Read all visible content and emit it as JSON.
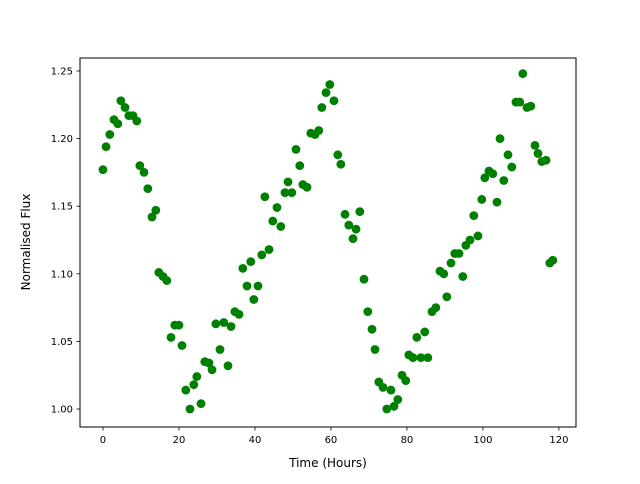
{
  "chart_data": {
    "type": "scatter",
    "title": "",
    "xlabel": "Time (Hours)",
    "ylabel": "Normalised Flux",
    "xlim": [
      -6.05,
      124.5
    ],
    "ylim": [
      0.9867,
      1.2596
    ],
    "xticks": [
      0,
      20,
      40,
      60,
      80,
      100,
      120
    ],
    "xtick_labels": [
      "0",
      "20",
      "40",
      "60",
      "80",
      "100",
      "120"
    ],
    "yticks": [
      1.0,
      1.05,
      1.1,
      1.15,
      1.2,
      1.25
    ],
    "ytick_labels": [
      "1.00",
      "1.05",
      "1.10",
      "1.15",
      "1.20",
      "1.25"
    ],
    "grid": false,
    "marker_color": "#008000",
    "x": [
      0,
      0.8,
      1.8,
      2.9,
      3.9,
      4.7,
      5.8,
      6.8,
      7.9,
      8.9,
      9.7,
      10.8,
      11.8,
      12.9,
      13.9,
      14.7,
      15.8,
      16.8,
      17.9,
      18.9,
      20,
      20.8,
      21.8,
      22.9,
      23.9,
      24.7,
      25.8,
      26.8,
      27.9,
      28.7,
      29.7,
      30.8,
      31.8,
      32.9,
      33.7,
      34.7,
      35.8,
      36.8,
      37.9,
      38.9,
      39.7,
      40.8,
      41.8,
      42.6,
      43.7,
      44.7,
      45.8,
      46.8,
      47.9,
      48.7,
      49.7,
      50.8,
      51.8,
      52.6,
      53.7,
      54.7,
      55.8,
      56.8,
      57.6,
      58.7,
      59.7,
      60.8,
      61.8,
      62.6,
      63.7,
      64.7,
      65.8,
      66.6,
      67.6,
      68.7,
      69.7,
      70.8,
      71.6,
      72.6,
      73.7,
      74.7,
      75.8,
      76.6,
      77.6,
      78.7,
      79.7,
      80.5,
      81.6,
      82.6,
      83.7,
      84.7,
      85.5,
      86.6,
      87.6,
      88.7,
      89.7,
      90.5,
      91.6,
      92.6,
      93.7,
      94.7,
      95.5,
      96.6,
      97.6,
      98.7,
      99.7,
      100.5,
      101.6,
      102.6,
      103.7,
      104.5,
      105.5,
      106.6,
      107.6,
      108.7,
      109.7,
      110.5,
      111.6,
      112.6,
      113.7,
      114.5,
      115.5,
      116.6,
      117.6,
      118.4
    ],
    "y": [
      1.177,
      1.194,
      1.203,
      1.214,
      1.211,
      1.228,
      1.223,
      1.217,
      1.217,
      1.213,
      1.18,
      1.175,
      1.163,
      1.142,
      1.147,
      1.101,
      1.098,
      1.095,
      1.053,
      1.062,
      1.062,
      1.047,
      1.014,
      1.0,
      1.018,
      1.024,
      1.004,
      1.035,
      1.034,
      1.029,
      1.063,
      1.044,
      1.064,
      1.032,
      1.061,
      1.072,
      1.07,
      1.104,
      1.091,
      1.109,
      1.081,
      1.091,
      1.114,
      1.157,
      1.118,
      1.139,
      1.149,
      1.135,
      1.16,
      1.168,
      1.16,
      1.192,
      1.18,
      1.166,
      1.164,
      1.204,
      1.203,
      1.206,
      1.223,
      1.234,
      1.24,
      1.228,
      1.188,
      1.181,
      1.144,
      1.136,
      1.126,
      1.133,
      1.146,
      1.096,
      1.072,
      1.059,
      1.044,
      1.02,
      1.016,
      1.0,
      1.014,
      1.002,
      1.007,
      1.025,
      1.021,
      1.04,
      1.038,
      1.053,
      1.038,
      1.057,
      1.038,
      1.072,
      1.075,
      1.102,
      1.1,
      1.083,
      1.108,
      1.115,
      1.115,
      1.098,
      1.121,
      1.125,
      1.143,
      1.128,
      1.155,
      1.171,
      1.176,
      1.174,
      1.153,
      1.2,
      1.169,
      1.188,
      1.179,
      1.227,
      1.227,
      1.248,
      1.223,
      1.224,
      1.195,
      1.189,
      1.183,
      1.184,
      1.108,
      1.11
    ]
  }
}
